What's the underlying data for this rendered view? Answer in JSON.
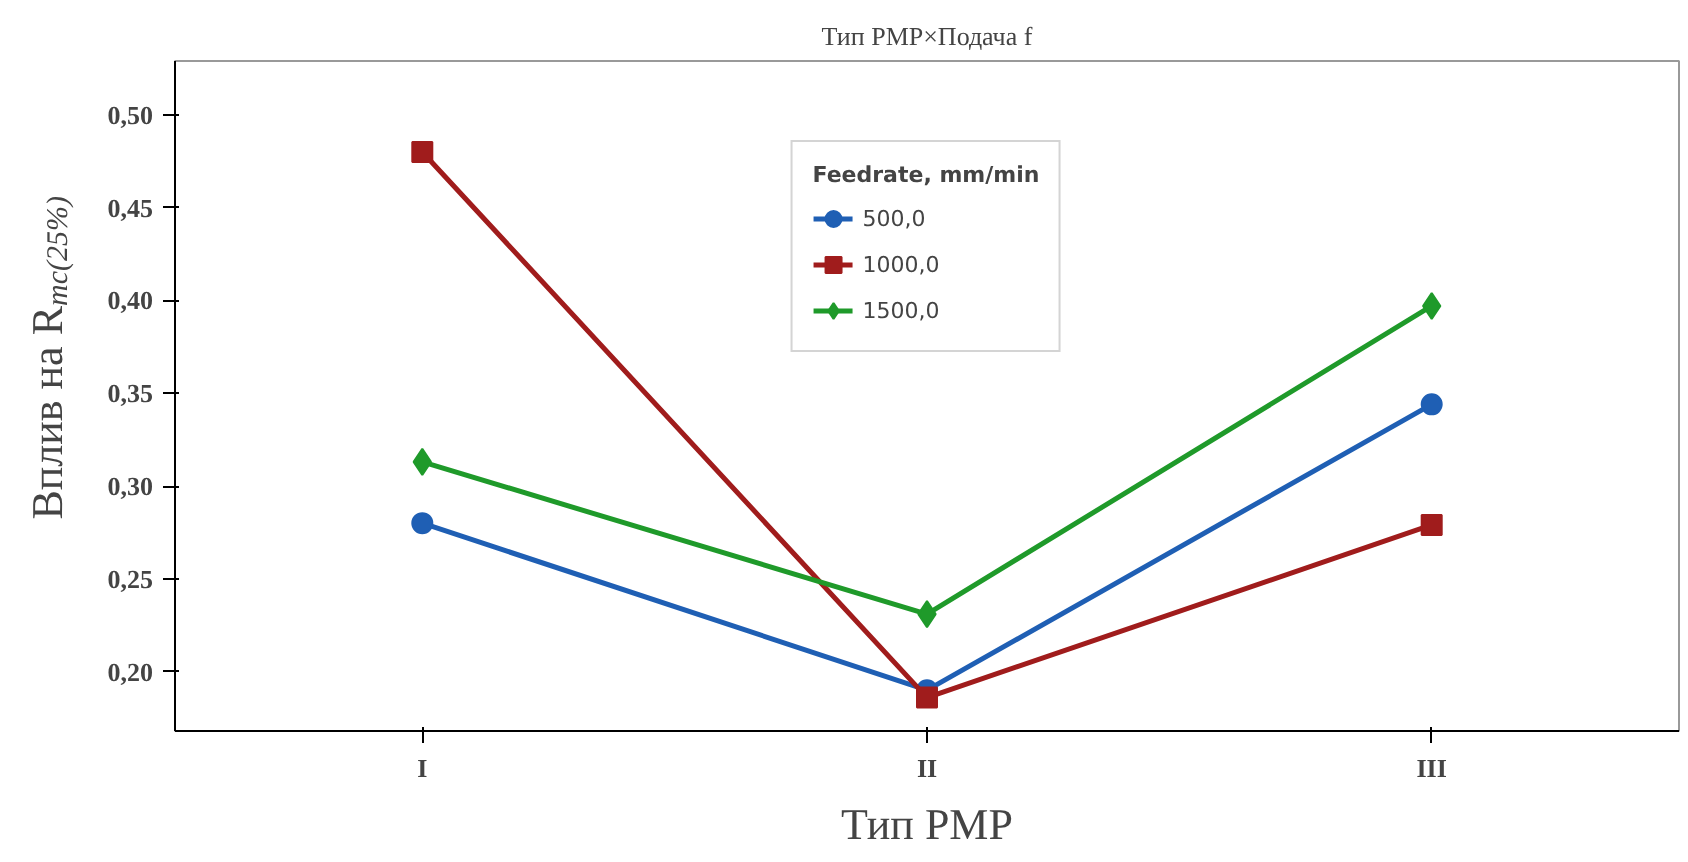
{
  "chart_data": {
    "type": "line",
    "title": "Тип РМР×Подача f",
    "xlabel": "Тип РМР",
    "ylabel": "Вплив на R$_{mc(25%)}$",
    "categories": [
      "I",
      "II",
      "III"
    ],
    "legend_title": "Feedrate, mm/min",
    "series": [
      {
        "name": "500,0",
        "color": "#1f5fb4",
        "marker": "circle",
        "values": [
          0.28,
          0.19,
          0.344
        ]
      },
      {
        "name": "1000,0",
        "color": "#a01c1c",
        "marker": "square",
        "values": [
          0.48,
          0.186,
          0.279
        ]
      },
      {
        "name": "1500,0",
        "color": "#1f9a2a",
        "marker": "diamond",
        "values": [
          0.313,
          0.231,
          0.397
        ]
      }
    ],
    "ylim": [
      0.168,
      0.529
    ],
    "yticks": [
      {
        "value": 0.2,
        "label": "0,20"
      },
      {
        "value": 0.25,
        "label": "0,25"
      },
      {
        "value": 0.3,
        "label": "0,30"
      },
      {
        "value": 0.35,
        "label": "0,35"
      },
      {
        "value": 0.4,
        "label": "0,40"
      },
      {
        "value": 0.45,
        "label": "0,45"
      },
      {
        "value": 0.5,
        "label": "0,50"
      }
    ],
    "grid": false,
    "legend": "top",
    "line_style": "solid"
  }
}
